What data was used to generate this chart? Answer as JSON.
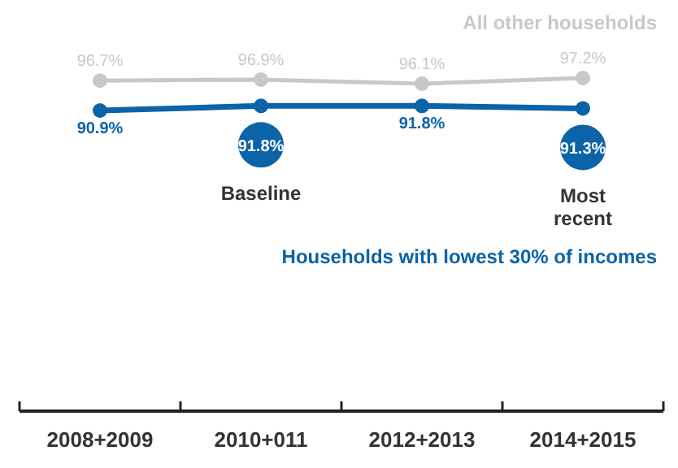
{
  "chart_data": {
    "type": "line",
    "categories": [
      "2008+2009",
      "2010+011",
      "2012+2013",
      "2014+2015"
    ],
    "series": [
      {
        "name": "All other households",
        "color": "#c8c8c8",
        "values": [
          96.7,
          96.9,
          96.1,
          97.2
        ],
        "value_labels": [
          "96.7%",
          "96.9%",
          "96.1%",
          "97.2%"
        ]
      },
      {
        "name": "Households with lowest 30% of incomes",
        "color": "#0b63a8",
        "values": [
          90.9,
          91.8,
          91.8,
          91.3
        ],
        "value_labels": [
          "90.9%",
          "91.8%",
          "91.8%",
          "91.3%"
        ]
      }
    ],
    "marker": "circle",
    "legend": false,
    "annotations": [
      "Baseline",
      "Most recent"
    ]
  }
}
